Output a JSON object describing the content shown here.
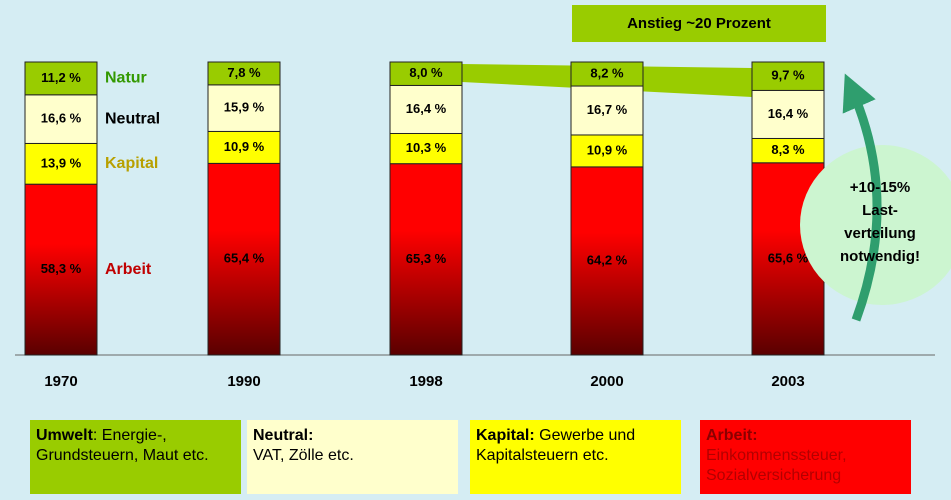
{
  "chart_data": {
    "type": "stacked_bar",
    "categories": [
      "1970",
      "1990",
      "1998",
      "2000",
      "2003"
    ],
    "series": [
      {
        "name": "Arbeit",
        "color": "#ff0000",
        "label_color": "#c00000",
        "values": [
          58.3,
          65.4,
          65.3,
          64.2,
          65.6
        ],
        "value_labels": [
          "58,3 %",
          "65,4 %",
          "65,3 %",
          "64,2 %",
          "65,6 %"
        ]
      },
      {
        "name": "Kapital",
        "color": "#ffff00",
        "label_color": "#b8a000",
        "values": [
          13.9,
          10.9,
          10.3,
          10.9,
          8.3
        ],
        "value_labels": [
          "13,9 %",
          "10,9 %",
          "10,3 %",
          "10,9 %",
          "8,3 %"
        ]
      },
      {
        "name": "Neutral",
        "color": "#ffffcc",
        "label_color": "#000000",
        "values": [
          16.6,
          15.9,
          16.4,
          16.7,
          16.4
        ],
        "value_labels": [
          "16,6 %",
          "15,9 %",
          "16,4 %",
          "16,7 %",
          "16,4 %"
        ]
      },
      {
        "name": "Natur",
        "color": "#99cc00",
        "label_color": "#339900",
        "values": [
          11.2,
          7.8,
          8.0,
          8.2,
          9.7
        ],
        "value_labels": [
          "11,2 %",
          "7,8 %",
          "8,0 %",
          "8,2 %",
          "9,7 %"
        ]
      }
    ],
    "annotations": {
      "increase": "Anstieg ~20  Prozent",
      "bubble": [
        "+10-15%",
        "Last-",
        "verteilung",
        "notwendig!"
      ]
    },
    "notes": [
      {
        "bold": "Umwelt",
        "text": ": Energie-, Grundsteuern, Maut etc.",
        "color": "#99cc00"
      },
      {
        "bold": "Neutral:",
        "text": "VAT, Zölle etc.",
        "color": "#ffffcc"
      },
      {
        "bold": "Kapital:",
        "text": " Gewerbe und Kapitalsteuern etc.",
        "color": "#ffff00"
      },
      {
        "bold": "Arbeit:",
        "text": "Einkommenssteuer, Sozialversicherung",
        "color": "#ff0000"
      }
    ]
  }
}
